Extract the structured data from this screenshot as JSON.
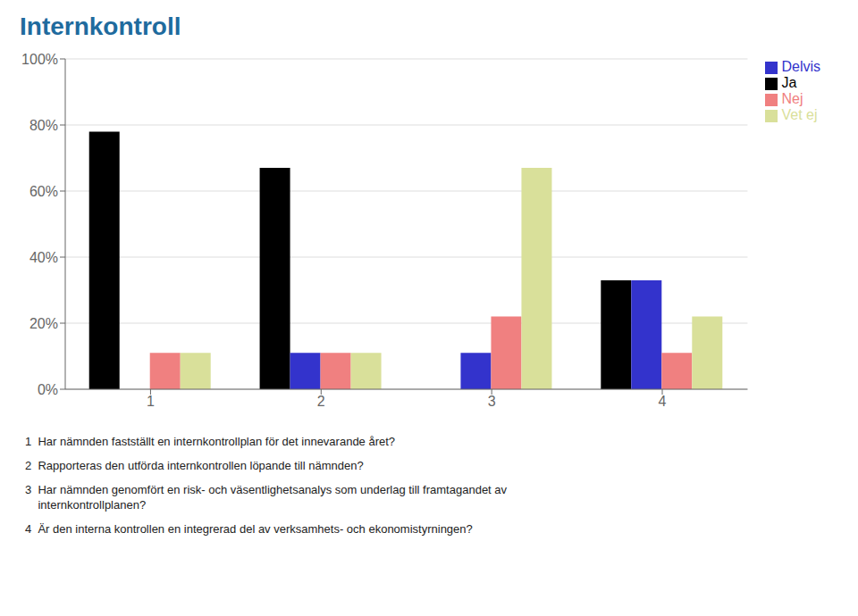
{
  "chart_data": {
    "type": "bar",
    "title": "Internkontroll",
    "categories": [
      "1",
      "2",
      "3",
      "4"
    ],
    "series": [
      {
        "name": "Ja",
        "color": "#000000",
        "values": [
          78,
          67,
          0,
          33
        ]
      },
      {
        "name": "Delvis",
        "color": "#3333CC",
        "values": [
          0,
          11,
          11,
          33
        ]
      },
      {
        "name": "Nej",
        "color": "#F08080",
        "values": [
          11,
          11,
          22,
          11
        ]
      },
      {
        "name": "Vet ej",
        "color": "#D9E09A",
        "values": [
          11,
          11,
          67,
          22
        ]
      }
    ],
    "ylim": [
      0,
      100
    ],
    "yticks": [
      {
        "value": 0,
        "label": "0%"
      },
      {
        "value": 20,
        "label": "20%"
      },
      {
        "value": 40,
        "label": "40%"
      },
      {
        "value": 60,
        "label": "60%"
      },
      {
        "value": 80,
        "label": "80%"
      },
      {
        "value": 100,
        "label": "100%"
      }
    ],
    "grid": true,
    "legend": "upper right",
    "annotations": [
      "1  Har nämnden fastställt en internkontrollplan för det innevarande året?",
      "2  Rapporteras den utförda internkontrollen löpande till nämnden?",
      "3  Har nämnden genomfört en risk- och väsentlighetsanalys som underlag till framtagandet av\n    internkontrollplanen?",
      "4  Är den interna kontrollen en integrerad del av verksamhets- och ekonomistyrningen?"
    ]
  }
}
